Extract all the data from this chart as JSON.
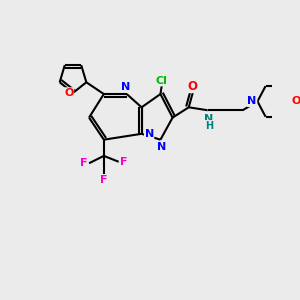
{
  "bg_color": "#ebebeb",
  "bond_color": "#000000",
  "atom_colors": {
    "N": "#0000ff",
    "O": "#ff0000",
    "F": "#ff00cc",
    "Cl": "#00bb00",
    "C": "#000000",
    "NH": "#008080"
  },
  "figsize": [
    3.0,
    3.0
  ],
  "dpi": 100
}
